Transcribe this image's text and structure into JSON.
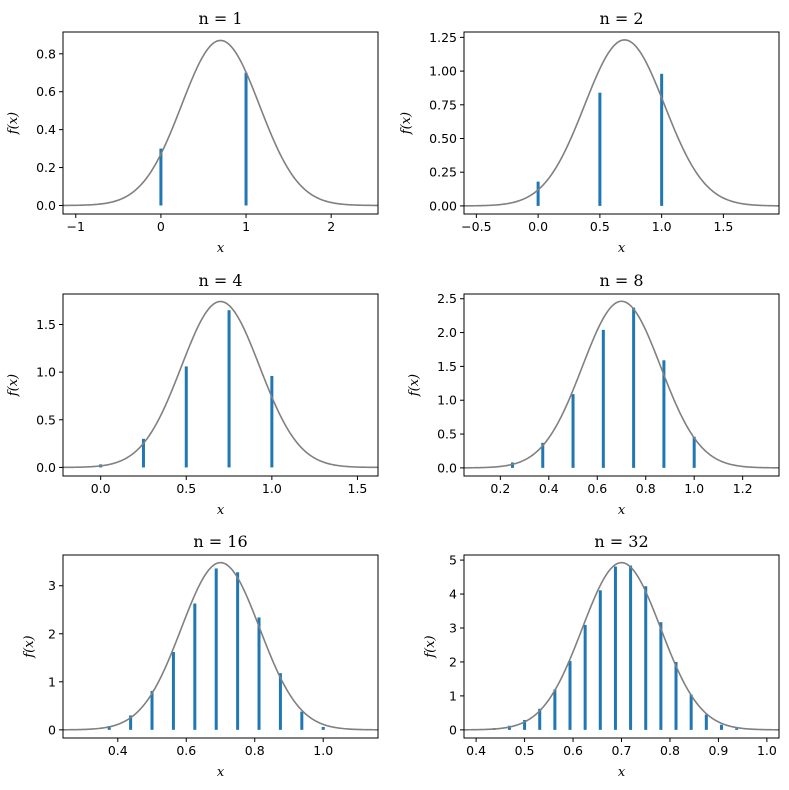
{
  "colors": {
    "bar": "#1f77b4",
    "curve": "#808080"
  },
  "chart_data": [
    {
      "type": "bar+line",
      "title": "n = 1",
      "xlabel": "x",
      "ylabel": "f(x)",
      "xlim": [
        -1.15,
        2.55
      ],
      "ylim": [
        -0.045,
        0.915
      ],
      "xticks": [
        -1,
        0,
        1,
        2
      ],
      "xtick_labels": [
        "−1",
        "0",
        "1",
        "2"
      ],
      "yticks": [
        0.0,
        0.2,
        0.4,
        0.6,
        0.8
      ],
      "ytick_labels": [
        "0.0",
        "0.2",
        "0.4",
        "0.6",
        "0.8"
      ],
      "bars": {
        "x": [
          0,
          1
        ],
        "values": [
          0.3,
          0.7
        ]
      },
      "curve": {
        "mean": 0.7,
        "sd": 0.4583
      }
    },
    {
      "type": "bar+line",
      "title": "n = 2",
      "xlabel": "x",
      "ylabel": "f(x)",
      "xlim": [
        -0.6,
        1.95
      ],
      "ylim": [
        -0.06,
        1.29
      ],
      "xticks": [
        -0.5,
        0.0,
        0.5,
        1.0,
        1.5
      ],
      "xtick_labels": [
        "−0.5",
        "0.0",
        "0.5",
        "1.0",
        "1.5"
      ],
      "yticks": [
        0.0,
        0.25,
        0.5,
        0.75,
        1.0,
        1.25
      ],
      "ytick_labels": [
        "0.00",
        "0.25",
        "0.50",
        "0.75",
        "1.00",
        "1.25"
      ],
      "bars": {
        "x": [
          0.0,
          0.5,
          1.0
        ],
        "values": [
          0.18,
          0.84,
          0.98
        ]
      },
      "curve": {
        "mean": 0.7,
        "sd": 0.324
      }
    },
    {
      "type": "bar+line",
      "title": "n = 4",
      "xlabel": "x",
      "ylabel": "f(x)",
      "xlim": [
        -0.22,
        1.62
      ],
      "ylim": [
        -0.09,
        1.82
      ],
      "xticks": [
        0.0,
        0.5,
        1.0,
        1.5
      ],
      "xtick_labels": [
        "0.0",
        "0.5",
        "1.0",
        "1.5"
      ],
      "yticks": [
        0.0,
        0.5,
        1.0,
        1.5
      ],
      "ytick_labels": [
        "0.0",
        "0.5",
        "1.0",
        "1.5"
      ],
      "bars": {
        "x": [
          0.0,
          0.25,
          0.5,
          0.75,
          1.0
        ],
        "values": [
          0.032,
          0.3,
          1.06,
          1.65,
          0.96
        ]
      },
      "curve": {
        "mean": 0.7,
        "sd": 0.2291
      }
    },
    {
      "type": "bar+line",
      "title": "n = 8",
      "xlabel": "x",
      "ylabel": "f(x)",
      "xlim": [
        0.05,
        1.35
      ],
      "ylim": [
        -0.12,
        2.57
      ],
      "xticks": [
        0.2,
        0.4,
        0.6,
        0.8,
        1.0,
        1.2
      ],
      "xtick_labels": [
        "0.2",
        "0.4",
        "0.6",
        "0.8",
        "1.0",
        "1.2"
      ],
      "yticks": [
        0.0,
        0.5,
        1.0,
        1.5,
        2.0,
        2.5
      ],
      "ytick_labels": [
        "0.0",
        "0.5",
        "1.0",
        "1.5",
        "2.0",
        "2.5"
      ],
      "bars": {
        "x": [
          0.125,
          0.25,
          0.375,
          0.5,
          0.625,
          0.75,
          0.875,
          1.0
        ],
        "values": [
          0.01,
          0.08,
          0.37,
          1.09,
          2.04,
          2.37,
          1.59,
          0.46
        ]
      },
      "curve": {
        "mean": 0.7,
        "sd": 0.162
      }
    },
    {
      "type": "bar+line",
      "title": "n = 16",
      "xlabel": "x",
      "ylabel": "f(x)",
      "xlim": [
        0.24,
        1.16
      ],
      "ylim": [
        -0.17,
        3.64
      ],
      "xticks": [
        0.4,
        0.6,
        0.8,
        1.0
      ],
      "xtick_labels": [
        "0.4",
        "0.6",
        "0.8",
        "1.0"
      ],
      "yticks": [
        0,
        1,
        2,
        3
      ],
      "ytick_labels": [
        "0",
        "1",
        "2",
        "3"
      ],
      "bars": {
        "x": [
          0.375,
          0.4375,
          0.5,
          0.5625,
          0.625,
          0.6875,
          0.75,
          0.8125,
          0.875,
          0.9375,
          1.0
        ],
        "values": [
          0.08,
          0.3,
          0.81,
          1.62,
          2.63,
          3.36,
          3.28,
          2.34,
          1.18,
          0.38,
          0.06
        ]
      },
      "curve": {
        "mean": 0.7,
        "sd": 0.1146
      }
    },
    {
      "type": "bar+line",
      "title": "n = 32",
      "xlabel": "x",
      "ylabel": "f(x)",
      "xlim": [
        0.375,
        1.025
      ],
      "ylim": [
        -0.24,
        5.15
      ],
      "xticks": [
        0.4,
        0.5,
        0.6,
        0.7,
        0.8,
        0.9,
        1.0
      ],
      "xtick_labels": [
        "0.4",
        "0.5",
        "0.6",
        "0.7",
        "0.8",
        "0.9",
        "1.0"
      ],
      "yticks": [
        0,
        1,
        2,
        3,
        4,
        5
      ],
      "ytick_labels": [
        "0",
        "1",
        "2",
        "3",
        "4",
        "5"
      ],
      "bars": {
        "x": [
          0.4375,
          0.46875,
          0.5,
          0.53125,
          0.5625,
          0.59375,
          0.625,
          0.65625,
          0.6875,
          0.71875,
          0.75,
          0.78125,
          0.8125,
          0.84375,
          0.875,
          0.90625,
          0.9375
        ],
        "values": [
          0.05,
          0.12,
          0.29,
          0.62,
          1.19,
          2.03,
          3.09,
          4.11,
          4.81,
          4.84,
          4.23,
          3.17,
          2.0,
          1.04,
          0.45,
          0.15,
          0.04
        ]
      },
      "curve": {
        "mean": 0.7,
        "sd": 0.081
      }
    }
  ]
}
